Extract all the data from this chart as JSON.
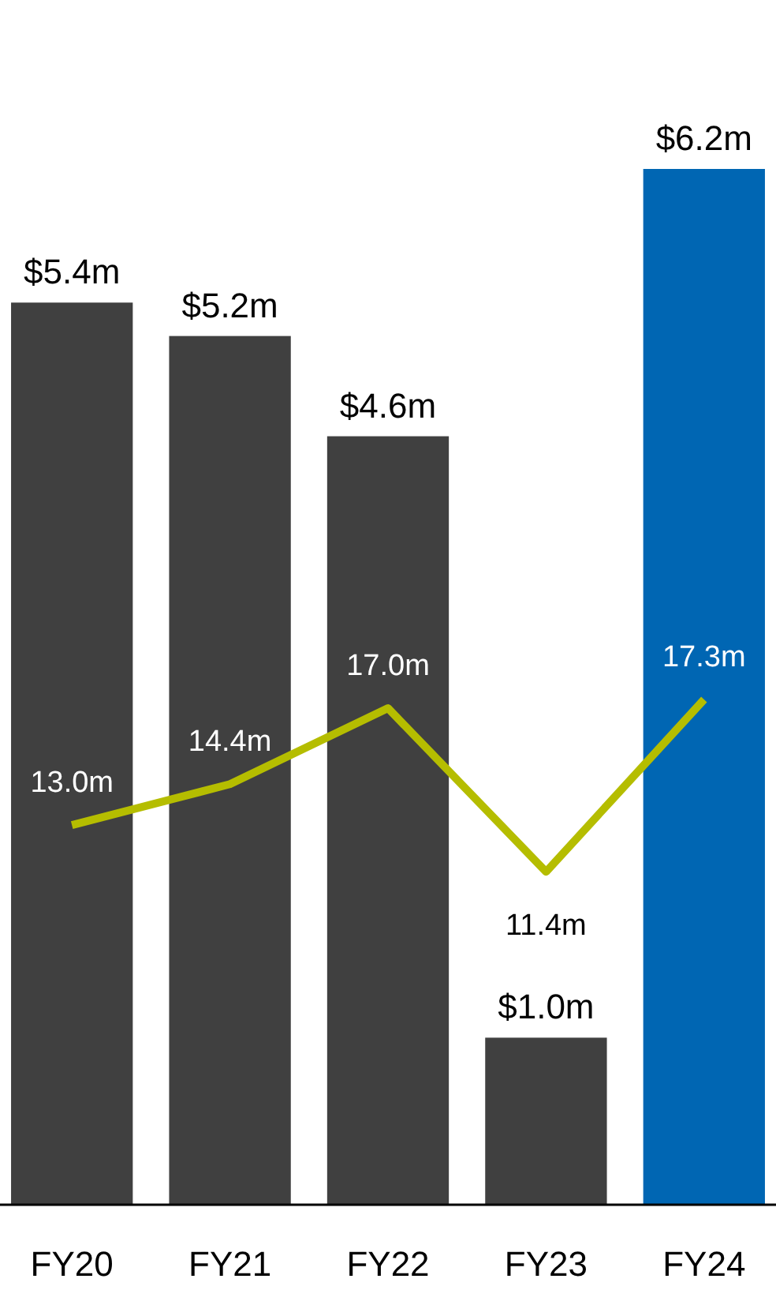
{
  "chart_data": {
    "type": "bar",
    "categories": [
      "FY20",
      "FY21",
      "FY22",
      "FY23",
      "FY24"
    ],
    "tick_labels": "x",
    "series": [
      {
        "colors": [
          "#404040",
          "#404040",
          "#404040",
          "#404040",
          "#0066b3"
        ],
        "values": [
          5.4,
          5.2,
          4.6,
          1.0,
          6.2
        ],
        "value_labels": [
          "$5.4m",
          "$5.2m",
          "$4.6m",
          "$1.0m",
          "$6.2m"
        ]
      },
      {
        "type": "line",
        "axis": "y2",
        "color": "#b5bd00",
        "values": [
          13.0,
          14.4,
          17.0,
          11.4,
          17.3
        ],
        "value_labels": [
          "13.0m",
          "14.4m",
          "17.0m",
          "11.4m",
          "17.3m"
        ],
        "marker": "none",
        "line_style": "solid"
      }
    ]
  }
}
